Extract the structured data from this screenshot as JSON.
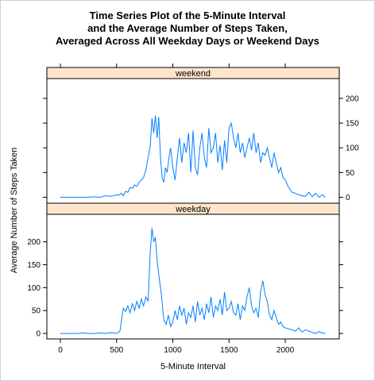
{
  "chart_data": {
    "type": "line",
    "title_lines": [
      "Time Series Plot of the 5-Minute Interval",
      "and the Average Number of Steps Taken,",
      "Averaged Across All Weekday Days or Weekend Days"
    ],
    "xlabel": "5-Minute Interval",
    "ylabel": "Average Number of Steps Taken",
    "xlim": [
      -120,
      2480
    ],
    "x_ticks": [
      0,
      500,
      1000,
      1500,
      2000
    ],
    "y_ticks": [
      0,
      50,
      100,
      150,
      200
    ],
    "grid": false,
    "line_color": "#0080ff",
    "strip_color": "#ffe5cc",
    "panels": [
      {
        "name": "weekend",
        "ylim": [
          -12,
          240
        ],
        "x": [
          0,
          50,
          100,
          150,
          200,
          250,
          300,
          350,
          400,
          450,
          500,
          520,
          540,
          560,
          580,
          600,
          620,
          640,
          660,
          680,
          700,
          720,
          740,
          760,
          780,
          800,
          815,
          830,
          845,
          860,
          875,
          890,
          905,
          920,
          935,
          950,
          965,
          980,
          1000,
          1020,
          1040,
          1060,
          1080,
          1100,
          1120,
          1140,
          1160,
          1180,
          1200,
          1220,
          1240,
          1260,
          1280,
          1300,
          1320,
          1340,
          1360,
          1380,
          1400,
          1420,
          1440,
          1460,
          1480,
          1500,
          1520,
          1540,
          1560,
          1580,
          1600,
          1620,
          1640,
          1660,
          1680,
          1700,
          1720,
          1740,
          1760,
          1780,
          1800,
          1820,
          1840,
          1860,
          1880,
          1900,
          1920,
          1940,
          1960,
          1980,
          2000,
          2030,
          2060,
          2090,
          2120,
          2150,
          2180,
          2210,
          2240,
          2270,
          2300,
          2330,
          2355
        ],
        "y": [
          0,
          0,
          0,
          0,
          0,
          0,
          1,
          0,
          3,
          2,
          5,
          4,
          8,
          3,
          12,
          10,
          20,
          18,
          25,
          22,
          30,
          35,
          40,
          55,
          80,
          105,
          160,
          130,
          165,
          120,
          162,
          80,
          40,
          30,
          60,
          50,
          80,
          100,
          60,
          35,
          80,
          120,
          70,
          110,
          90,
          130,
          50,
          135,
          60,
          45,
          100,
          130,
          80,
          60,
          140,
          90,
          100,
          130,
          70,
          105,
          55,
          115,
          70,
          140,
          150,
          120,
          100,
          130,
          90,
          110,
          80,
          100,
          120,
          95,
          130,
          90,
          110,
          70,
          90,
          85,
          100,
          80,
          60,
          90,
          70,
          50,
          60,
          40,
          35,
          20,
          10,
          8,
          5,
          3,
          2,
          10,
          1,
          8,
          0,
          5,
          0
        ]
      },
      {
        "name": "weekday",
        "ylim": [
          -12,
          260
        ],
        "x": [
          0,
          50,
          100,
          150,
          200,
          250,
          300,
          350,
          400,
          450,
          500,
          530,
          550,
          560,
          580,
          600,
          620,
          640,
          660,
          680,
          700,
          720,
          740,
          760,
          780,
          800,
          815,
          830,
          845,
          860,
          880,
          900,
          920,
          940,
          960,
          980,
          1000,
          1020,
          1040,
          1060,
          1080,
          1100,
          1120,
          1140,
          1160,
          1180,
          1200,
          1220,
          1240,
          1260,
          1280,
          1300,
          1320,
          1340,
          1360,
          1380,
          1400,
          1420,
          1440,
          1460,
          1480,
          1500,
          1520,
          1540,
          1560,
          1580,
          1600,
          1620,
          1640,
          1660,
          1680,
          1700,
          1720,
          1740,
          1760,
          1780,
          1800,
          1820,
          1840,
          1860,
          1880,
          1900,
          1920,
          1940,
          1960,
          1980,
          2000,
          2030,
          2060,
          2090,
          2120,
          2150,
          2180,
          2210,
          2240,
          2270,
          2300,
          2330,
          2355
        ],
        "y": [
          0,
          0,
          0,
          0,
          1,
          0,
          0,
          1,
          0,
          2,
          0,
          5,
          40,
          55,
          48,
          60,
          45,
          65,
          50,
          70,
          55,
          75,
          60,
          80,
          70,
          180,
          230,
          200,
          210,
          160,
          120,
          80,
          30,
          20,
          40,
          15,
          25,
          50,
          30,
          60,
          40,
          55,
          20,
          45,
          35,
          60,
          25,
          70,
          40,
          55,
          30,
          65,
          45,
          80,
          35,
          60,
          50,
          75,
          40,
          90,
          50,
          55,
          70,
          45,
          40,
          65,
          30,
          60,
          50,
          80,
          100,
          60,
          45,
          55,
          35,
          90,
          115,
          85,
          70,
          40,
          30,
          50,
          35,
          20,
          25,
          15,
          12,
          10,
          8,
          5,
          12,
          3,
          8,
          5,
          2,
          0,
          4,
          1,
          0
        ]
      }
    ]
  }
}
